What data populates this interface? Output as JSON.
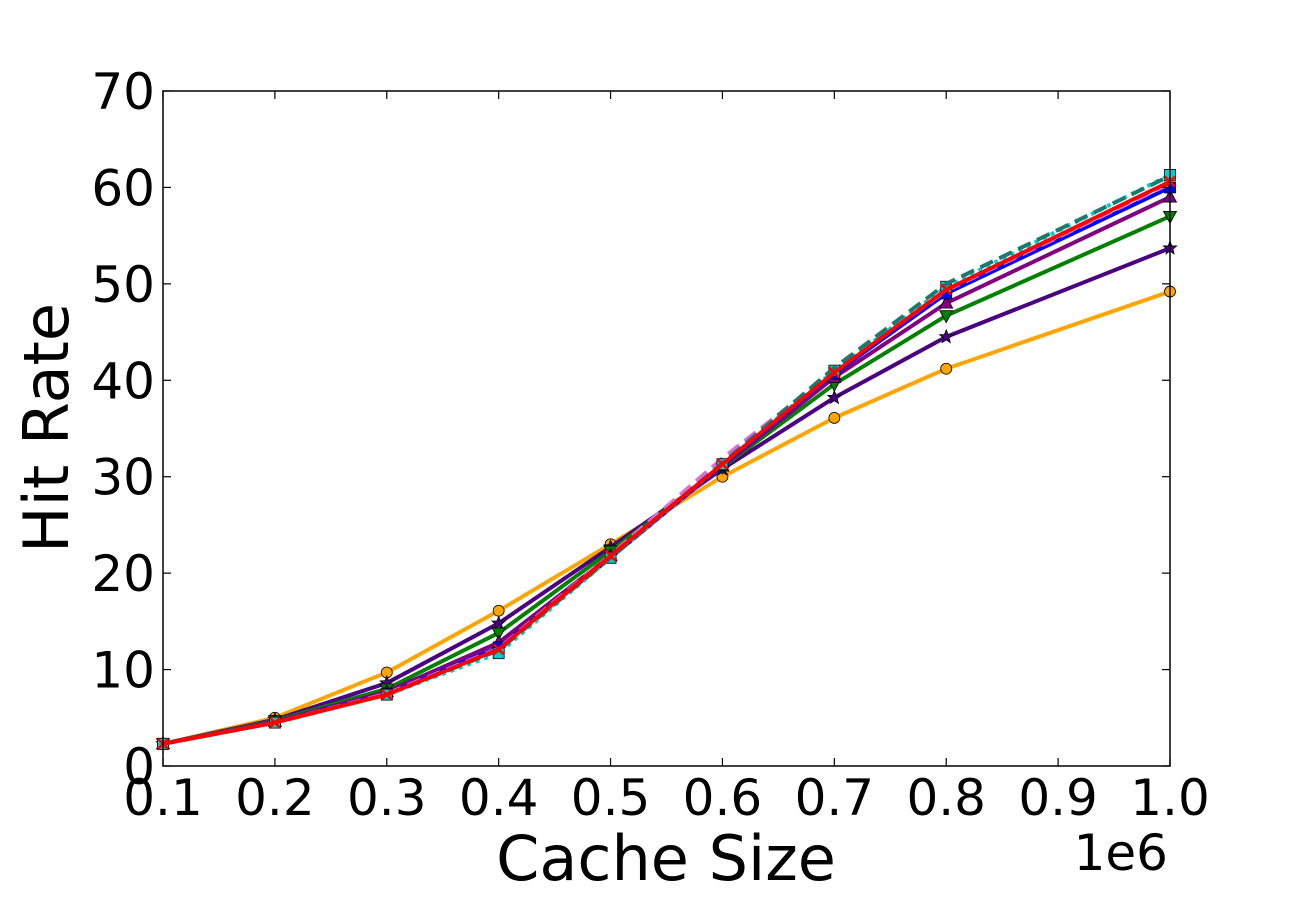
{
  "chart_data": {
    "type": "line",
    "title": "",
    "xlabel": "Cache Size",
    "ylabel": "Hit Rate",
    "x_offset_text": "1e6",
    "xlim": [
      0.1,
      1.0
    ],
    "ylim": [
      0,
      70
    ],
    "x": [
      0.1,
      0.2,
      0.3,
      0.4,
      0.5,
      0.6,
      0.7,
      0.8,
      1.0
    ],
    "x_ticks": [
      0.1,
      0.2,
      0.3,
      0.4,
      0.5,
      0.6,
      0.7,
      0.8,
      0.9,
      1.0
    ],
    "x_tick_labels": [
      "0.1",
      "0.2",
      "0.3",
      "0.4",
      "0.5",
      "0.6",
      "0.7",
      "0.8",
      "0.9",
      "1.0"
    ],
    "y_ticks": [
      0,
      10,
      20,
      30,
      40,
      50,
      60,
      70
    ],
    "y_tick_labels": [
      "0",
      "10",
      "20",
      "30",
      "40",
      "50",
      "60",
      "70"
    ],
    "grid": false,
    "legend": "none",
    "series": [
      {
        "color": "#ffa500",
        "line": "solid",
        "marker": "circle",
        "values": [
          2.3,
          5.0,
          9.7,
          16.1,
          23.0,
          30.0,
          36.1,
          41.2,
          49.2
        ]
      },
      {
        "color": "#4b0082",
        "line": "solid",
        "marker": "star",
        "values": [
          2.3,
          4.8,
          8.6,
          14.8,
          22.7,
          30.8,
          38.2,
          44.5,
          53.7
        ]
      },
      {
        "color": "#008000",
        "line": "solid",
        "marker": "triangle-down",
        "values": [
          2.3,
          4.7,
          8.0,
          13.8,
          22.3,
          31.0,
          39.6,
          46.7,
          57.0
        ]
      },
      {
        "color": "#800080",
        "line": "solid",
        "marker": "triangle-up",
        "values": [
          2.3,
          4.6,
          7.7,
          12.8,
          21.8,
          31.1,
          40.3,
          48.0,
          59.0
        ]
      },
      {
        "color": "#0000ff",
        "line": "solid",
        "marker": "square",
        "values": [
          2.3,
          4.5,
          7.5,
          12.3,
          21.6,
          31.2,
          40.7,
          49.0,
          60.0
        ]
      },
      {
        "color": "#da70d6",
        "line": "dashed",
        "marker": "none",
        "values": [
          2.3,
          4.5,
          7.5,
          12.2,
          21.9,
          31.9,
          41.0,
          49.3,
          60.4
        ]
      },
      {
        "color": "#00ced1",
        "line": "dotted",
        "marker": "square",
        "values": [
          2.3,
          4.5,
          7.4,
          11.7,
          21.6,
          31.3,
          41.0,
          49.7,
          61.3
        ]
      },
      {
        "color": "#1a7a6e",
        "line": "dashed",
        "marker": "none",
        "values": [
          2.3,
          4.5,
          7.4,
          12.0,
          21.6,
          31.4,
          41.3,
          50.0,
          61.2
        ]
      },
      {
        "color": "#ff0000",
        "line": "solid",
        "marker": "x",
        "values": [
          2.3,
          4.5,
          7.4,
          12.1,
          21.8,
          31.3,
          40.8,
          49.4,
          60.6
        ]
      }
    ]
  }
}
